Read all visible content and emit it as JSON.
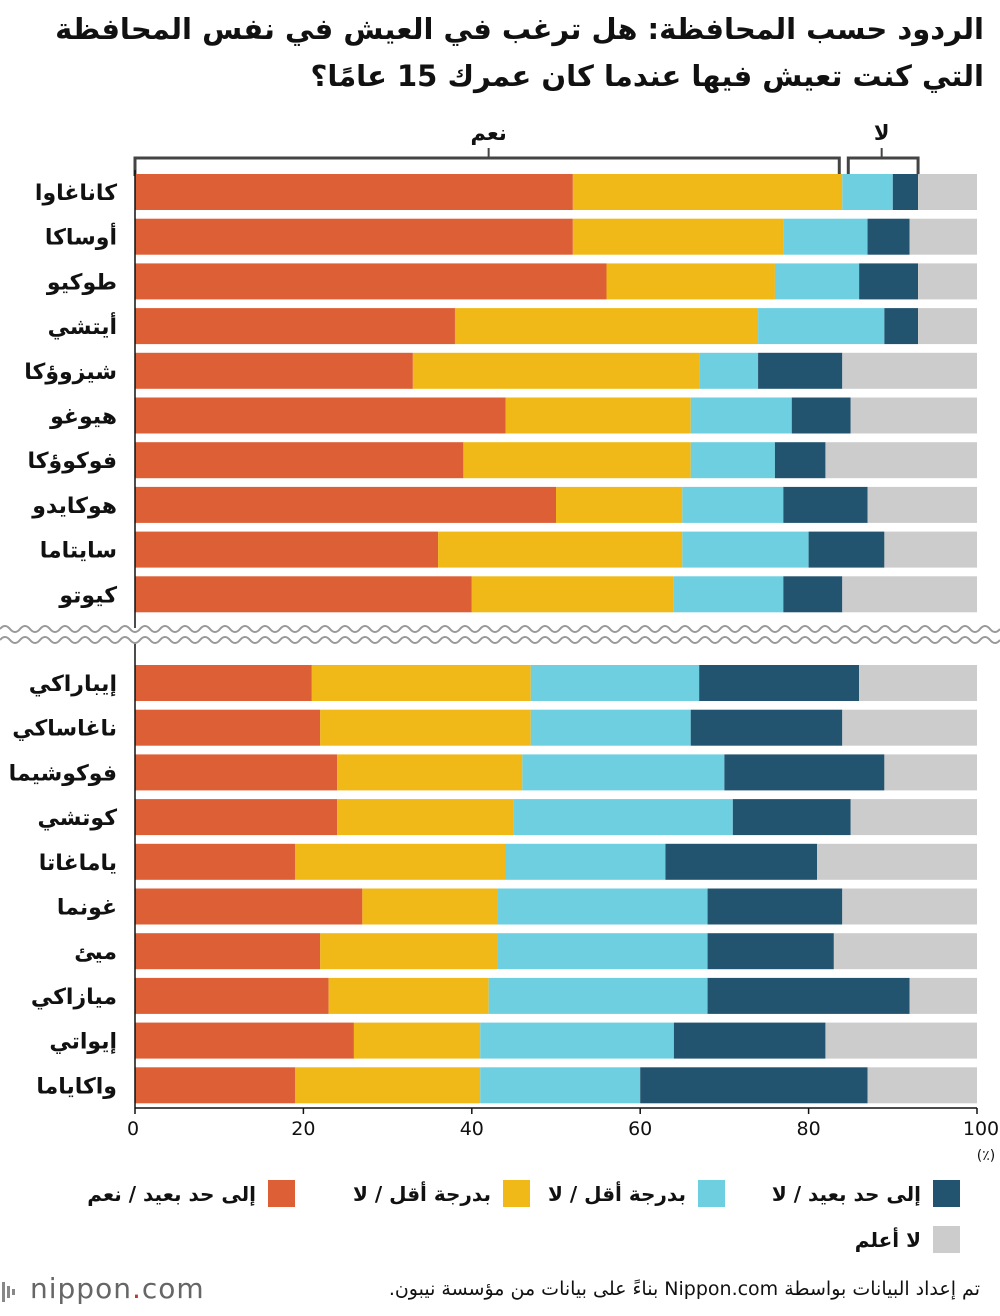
{
  "title": "الردود حسب المحافظة: هل ترغب في العيش في نفس المحافظة التي كنت تعيش فيها عندما كان عمرك 15 عامًا؟",
  "colors": {
    "yes_strong": "#dc5f35",
    "yes_weak": "#f0b917",
    "no_weak": "#6dcfe0",
    "no_strong": "#23546f",
    "unknown": "#cccccc"
  },
  "brackets": {
    "yes": "نعم",
    "no": "لا"
  },
  "legend": [
    {
      "key": "yes_strong",
      "label": "إلى حد بعيد / نعم"
    },
    {
      "key": "yes_weak",
      "label": "بدرجة أقل / لا"
    },
    {
      "key": "no_weak",
      "label": "بدرجة أقل / لا"
    },
    {
      "key": "no_strong",
      "label": "إلى حد بعيد / لا"
    },
    {
      "key": "unknown",
      "label": "لا أعلم"
    }
  ],
  "footer": {
    "logo_text": "nippon",
    "logo_dot": ".",
    "logo_suffix": "com",
    "source": "تم إعداد البيانات بواسطة Nippon.com بناءً على بيانات من مؤسسة نيبون."
  },
  "chart_data": {
    "type": "bar",
    "orientation": "horizontal",
    "stacked": true,
    "xlim": [
      0,
      100
    ],
    "xticks": [
      0,
      20,
      40,
      60,
      80,
      100
    ],
    "unit_label": "(٪)",
    "series_keys": [
      "yes_strong",
      "yes_weak",
      "no_weak",
      "no_strong",
      "unknown"
    ],
    "groups": [
      {
        "categories": [
          "كاناغاوا",
          "أوساكا",
          "طوكيو",
          "أيتشي",
          "شيزوؤكا",
          "هيوغو",
          "فوكوؤكا",
          "هوكايدو",
          "سايتاما",
          "كيوتو"
        ],
        "values": [
          [
            52,
            32,
            6,
            3,
            7
          ],
          [
            52,
            25,
            10,
            5,
            8
          ],
          [
            56,
            20,
            10,
            7,
            7
          ],
          [
            38,
            36,
            15,
            4,
            7
          ],
          [
            33,
            34,
            7,
            10,
            16
          ],
          [
            44,
            22,
            12,
            7,
            15
          ],
          [
            39,
            27,
            10,
            6,
            18
          ],
          [
            50,
            15,
            12,
            10,
            13
          ],
          [
            36,
            29,
            15,
            9,
            11
          ],
          [
            40,
            24,
            13,
            7,
            16
          ]
        ]
      },
      {
        "categories": [
          "إيباراكي",
          "ناغاساكي",
          "فوكوشيما",
          "كوتشي",
          "ياماغاتا",
          "غونما",
          "ميئ",
          "ميازاكي",
          "إيواتي",
          "واكاياما"
        ],
        "values": [
          [
            21,
            26,
            20,
            19,
            14
          ],
          [
            22,
            25,
            19,
            18,
            16
          ],
          [
            24,
            22,
            24,
            19,
            11
          ],
          [
            24,
            21,
            26,
            14,
            15
          ],
          [
            19,
            25,
            19,
            18,
            19
          ],
          [
            27,
            16,
            25,
            16,
            16
          ],
          [
            22,
            21,
            25,
            15,
            17
          ],
          [
            23,
            19,
            26,
            24,
            8
          ],
          [
            26,
            15,
            23,
            18,
            18
          ],
          [
            19,
            22,
            19,
            27,
            13
          ]
        ]
      }
    ]
  }
}
